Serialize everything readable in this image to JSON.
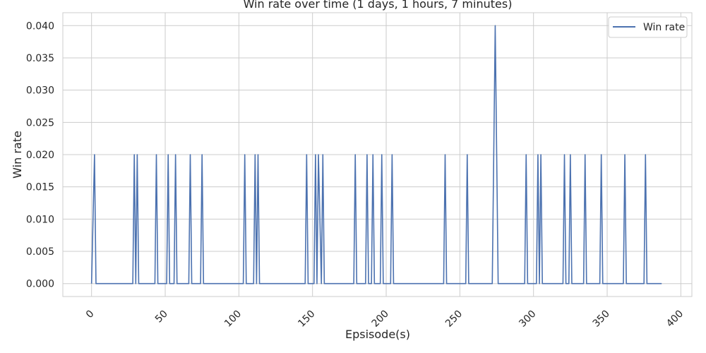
{
  "chart_data": {
    "type": "line",
    "title": "Win rate over time (1 days, 1 hours, 7 minutes)",
    "xlabel": "Epsisode(s)",
    "ylabel": "Win rate",
    "xlim": [
      -19.5,
      407.5
    ],
    "ylim": [
      -0.002,
      0.042
    ],
    "x_ticks": [
      0,
      50,
      100,
      150,
      200,
      250,
      300,
      350,
      400
    ],
    "y_ticks": [
      0.0,
      0.005,
      0.01,
      0.015,
      0.02,
      0.025,
      0.03,
      0.035,
      0.04
    ],
    "y_tick_labels": [
      "0.000",
      "0.005",
      "0.010",
      "0.015",
      "0.020",
      "0.025",
      "0.030",
      "0.035",
      "0.040"
    ],
    "grid": true,
    "legend_position": "top-right",
    "series": [
      {
        "name": "Win rate",
        "color": "#4c72b0",
        "x": [
          0,
          1,
          2,
          3,
          28,
          29,
          30,
          31,
          32,
          43,
          44,
          45,
          51,
          52,
          53,
          56,
          57,
          58,
          66,
          67,
          68,
          74,
          75,
          76,
          103,
          104,
          105,
          110,
          111,
          112,
          113,
          114,
          145,
          146,
          147,
          151,
          152,
          153,
          154,
          156,
          157,
          158,
          178,
          179,
          180,
          186,
          187,
          188,
          190,
          191,
          192,
          196,
          197,
          198,
          203,
          204,
          205,
          239,
          240,
          241,
          254,
          255,
          256,
          272,
          273,
          274,
          275,
          276,
          277,
          294,
          295,
          296,
          302,
          303,
          304,
          305,
          306,
          320,
          321,
          322,
          324,
          325,
          326,
          334,
          335,
          336,
          345,
          346,
          347,
          361,
          362,
          363,
          375,
          376,
          377,
          387
        ],
        "y": [
          0,
          0.01,
          0.02,
          0,
          0,
          0.02,
          0,
          0.02,
          0,
          0,
          0.02,
          0,
          0,
          0.02,
          0,
          0,
          0.02,
          0,
          0,
          0.02,
          0,
          0,
          0.02,
          0,
          0,
          0.02,
          0,
          0,
          0.02,
          0,
          0.02,
          0,
          0,
          0.02,
          0,
          0,
          0.02,
          0,
          0.02,
          0,
          0.02,
          0,
          0,
          0.02,
          0,
          0,
          0.02,
          0,
          0,
          0.02,
          0,
          0,
          0.02,
          0,
          0,
          0.02,
          0,
          0,
          0.02,
          0,
          0,
          0.02,
          0,
          0,
          0.02,
          0.04,
          0.02,
          0,
          0,
          0,
          0.02,
          0,
          0,
          0.02,
          0,
          0.02,
          0,
          0,
          0.02,
          0,
          0,
          0.02,
          0,
          0,
          0.02,
          0,
          0,
          0.02,
          0,
          0,
          0.02,
          0,
          0,
          0.02,
          0,
          0
        ]
      }
    ]
  }
}
